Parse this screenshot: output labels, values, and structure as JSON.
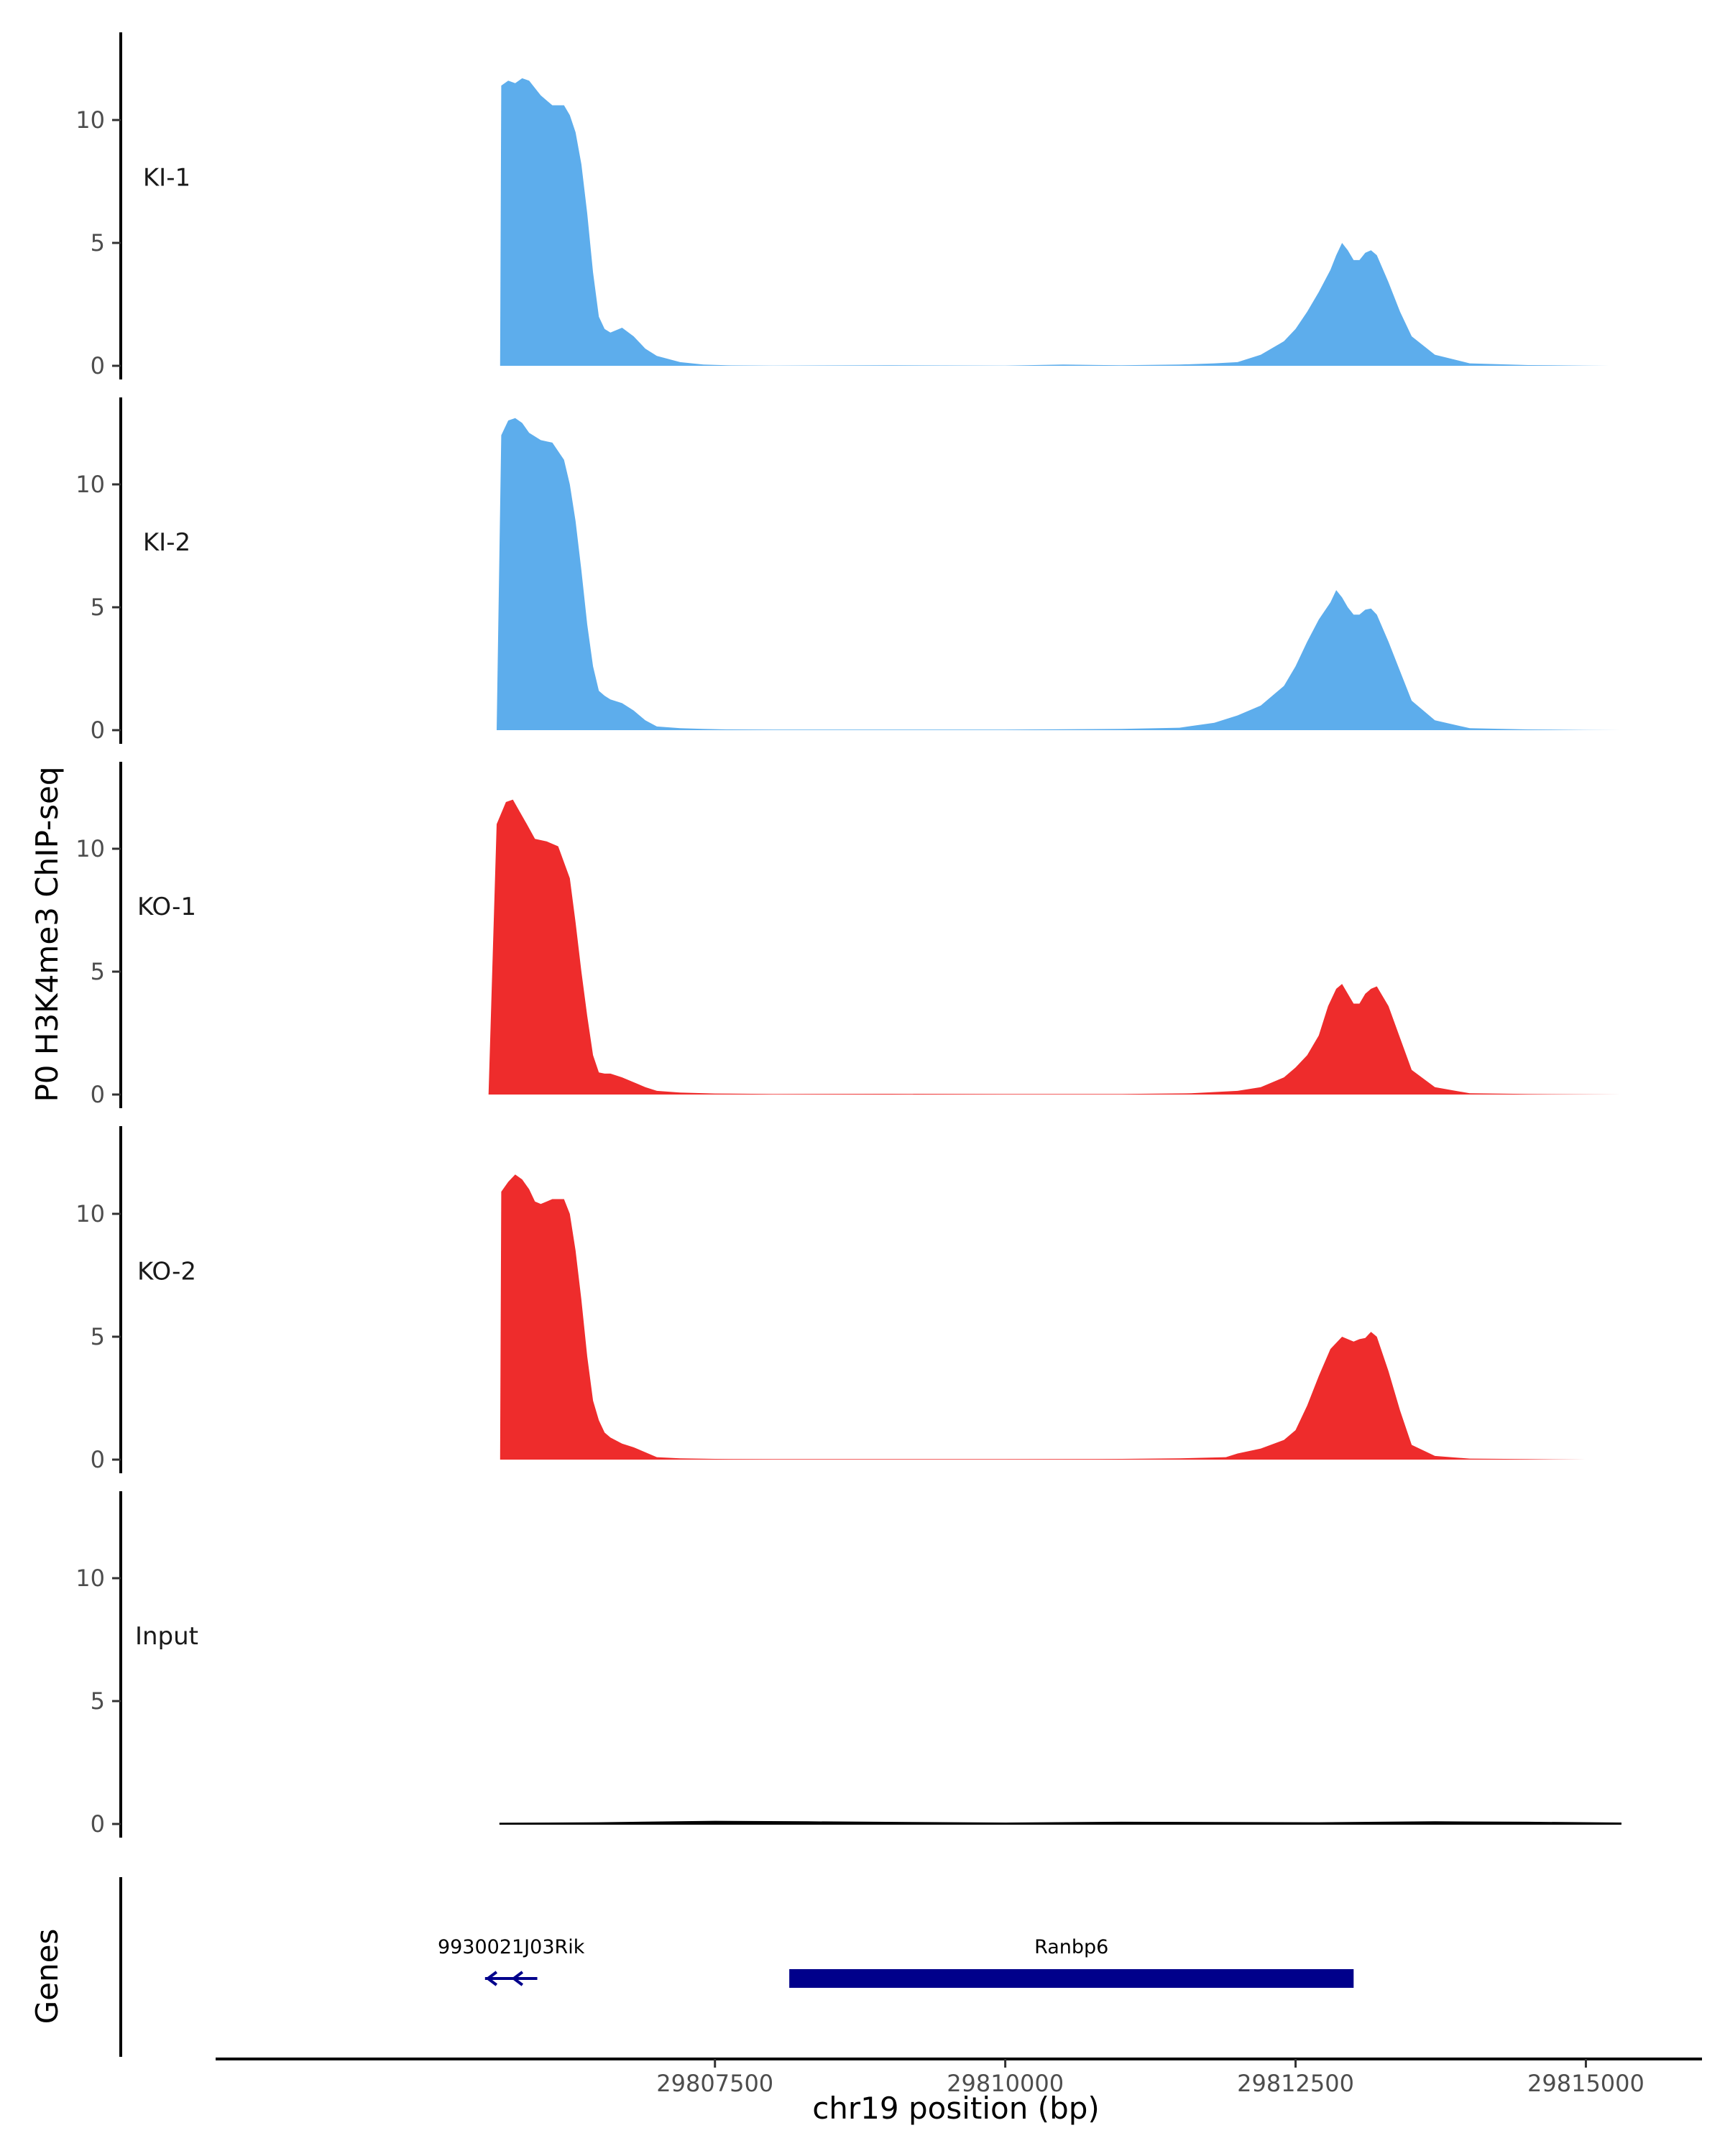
{
  "chart_data": {
    "type": "area",
    "ylabel": "P0 H3K4me3 ChIP-seq",
    "xlabel": "chr19 position (bp)",
    "genes_label": "Genes",
    "xlim": [
      29803200,
      29816000
    ],
    "x_ticks": [
      29807500,
      29810000,
      29812500,
      29815000
    ],
    "x_tick_labels": [
      "29807500",
      "29810000",
      "29812500",
      "29815000"
    ],
    "y_ticks": [
      0,
      5,
      10
    ],
    "y_tick_labels": [
      "0",
      "5",
      "10"
    ],
    "ylim": [
      0,
      13.5
    ],
    "colors": {
      "KI": "#5DADEC",
      "KO": "#EE2C2C",
      "Input": "#000000",
      "gene": "#00008B"
    },
    "tracks": [
      {
        "name": "KI-1",
        "color": "#5DADEC",
        "x": [
          29805650,
          29805660,
          29805720,
          29805780,
          29805840,
          29805900,
          29806000,
          29806100,
          29806200,
          29806250,
          29806300,
          29806350,
          29806400,
          29806450,
          29806500,
          29806550,
          29806600,
          29806700,
          29806800,
          29806900,
          29807000,
          29807200,
          29807400,
          29807600,
          29808000,
          29809000,
          29810000,
          29810500,
          29811000,
          29811500,
          29811800,
          29812000,
          29812200,
          29812400,
          29812500,
          29812600,
          29812700,
          29812800,
          29812850,
          29812900,
          29812950,
          29813000,
          29813050,
          29813100,
          29813150,
          29813200,
          29813300,
          29813400,
          29813500,
          29813700,
          29814000,
          29814500,
          29815000,
          29815200
        ],
        "y": [
          0,
          11.4,
          11.6,
          11.5,
          11.7,
          11.6,
          11.0,
          10.6,
          10.6,
          10.2,
          9.5,
          8.2,
          6.2,
          3.8,
          2.0,
          1.5,
          1.35,
          1.55,
          1.2,
          0.7,
          0.4,
          0.15,
          0.05,
          0.02,
          0.01,
          0.02,
          0.01,
          0.05,
          0.02,
          0.05,
          0.1,
          0.15,
          0.45,
          1.0,
          1.5,
          2.2,
          3.0,
          3.9,
          4.5,
          5.0,
          4.7,
          4.3,
          4.3,
          4.6,
          4.7,
          4.5,
          3.4,
          2.2,
          1.2,
          0.45,
          0.1,
          0.03,
          0.01,
          0
        ],
        "label_position": "left"
      },
      {
        "name": "KI-2",
        "color": "#5DADEC",
        "x": [
          29805620,
          29805660,
          29805720,
          29805780,
          29805840,
          29805900,
          29806000,
          29806100,
          29806200,
          29806250,
          29806300,
          29806350,
          29806400,
          29806450,
          29806500,
          29806550,
          29806600,
          29806700,
          29806800,
          29806900,
          29807000,
          29807200,
          29807400,
          29807600,
          29808000,
          29809000,
          29810000,
          29811000,
          29811500,
          29811800,
          29812000,
          29812200,
          29812400,
          29812500,
          29812600,
          29812700,
          29812800,
          29812850,
          29812900,
          29812950,
          29813000,
          29813050,
          29813100,
          29813150,
          29813200,
          29813300,
          29813400,
          29813500,
          29813700,
          29814000,
          29814500,
          29815000,
          29815300
        ],
        "y": [
          0,
          12.0,
          12.6,
          12.7,
          12.5,
          12.1,
          11.8,
          11.7,
          11.0,
          10.0,
          8.5,
          6.5,
          4.3,
          2.6,
          1.6,
          1.4,
          1.25,
          1.1,
          0.8,
          0.4,
          0.15,
          0.08,
          0.05,
          0.03,
          0.02,
          0.02,
          0.02,
          0.05,
          0.1,
          0.3,
          0.6,
          1.0,
          1.8,
          2.6,
          3.6,
          4.5,
          5.2,
          5.7,
          5.4,
          5.0,
          4.7,
          4.7,
          4.9,
          4.95,
          4.7,
          3.6,
          2.4,
          1.2,
          0.4,
          0.08,
          0.03,
          0.01,
          0
        ],
        "label_position": "left"
      },
      {
        "name": "KO-1",
        "color": "#EE2C2C",
        "x": [
          29805550,
          29805620,
          29805700,
          29805760,
          29805820,
          29805880,
          29805950,
          29806050,
          29806150,
          29806250,
          29806300,
          29806350,
          29806400,
          29806450,
          29806500,
          29806550,
          29806600,
          29806700,
          29806800,
          29806900,
          29807000,
          29807200,
          29807500,
          29808000,
          29809000,
          29810000,
          29811000,
          29811600,
          29812000,
          29812200,
          29812400,
          29812500,
          29812600,
          29812700,
          29812780,
          29812850,
          29812900,
          29812950,
          29813000,
          29813050,
          29813100,
          29813150,
          29813200,
          29813300,
          29813400,
          29813500,
          29813700,
          29814000,
          29814500,
          29815000,
          29815300
        ],
        "y": [
          0,
          11.0,
          11.9,
          12.0,
          11.5,
          11.0,
          10.4,
          10.3,
          10.1,
          8.8,
          7.0,
          5.0,
          3.2,
          1.6,
          0.9,
          0.85,
          0.85,
          0.7,
          0.5,
          0.3,
          0.15,
          0.08,
          0.04,
          0.02,
          0.03,
          0.02,
          0.02,
          0.05,
          0.15,
          0.3,
          0.7,
          1.1,
          1.6,
          2.4,
          3.6,
          4.3,
          4.5,
          4.1,
          3.7,
          3.7,
          4.1,
          4.3,
          4.4,
          3.6,
          2.3,
          1.0,
          0.3,
          0.05,
          0.02,
          0.01,
          0
        ],
        "label_position": "left"
      },
      {
        "name": "KO-2",
        "color": "#EE2C2C",
        "x": [
          29805650,
          29805660,
          29805720,
          29805780,
          29805840,
          29805900,
          29805950,
          29806000,
          29806100,
          29806200,
          29806250,
          29806300,
          29806350,
          29806400,
          29806450,
          29806500,
          29806550,
          29806600,
          29806700,
          29806800,
          29806900,
          29807000,
          29807200,
          29807500,
          29808000,
          29809000,
          29810000,
          29811000,
          29811500,
          29811900,
          29812000,
          29812200,
          29812400,
          29812500,
          29812600,
          29812700,
          29812800,
          29812900,
          29813000,
          29813050,
          29813100,
          29813150,
          29813200,
          29813300,
          29813400,
          29813500,
          29813700,
          29814000,
          29814500,
          29815000
        ],
        "y": [
          0,
          10.9,
          11.3,
          11.6,
          11.4,
          11.0,
          10.5,
          10.4,
          10.6,
          10.6,
          10.0,
          8.5,
          6.5,
          4.2,
          2.4,
          1.6,
          1.1,
          0.9,
          0.65,
          0.5,
          0.3,
          0.1,
          0.05,
          0.03,
          0.02,
          0.02,
          0.02,
          0.03,
          0.05,
          0.1,
          0.25,
          0.45,
          0.8,
          1.2,
          2.2,
          3.4,
          4.5,
          5.0,
          4.8,
          4.9,
          4.95,
          5.2,
          5.0,
          3.6,
          2.0,
          0.6,
          0.15,
          0.04,
          0.02,
          0
        ],
        "label_position": "left"
      },
      {
        "name": "Input",
        "color": "#000000",
        "x": [
          29805650,
          29806500,
          29807500,
          29808300,
          29809200,
          29810000,
          29811000,
          29811800,
          29812700,
          29813700,
          29814500,
          29815300
        ],
        "y": [
          0.02,
          0.04,
          0.1,
          0.08,
          0.05,
          0.03,
          0.06,
          0.05,
          0.04,
          0.08,
          0.06,
          0.03
        ],
        "label_position": "left"
      }
    ],
    "genes": [
      {
        "name": "9930021J03Rik",
        "start": 29805520,
        "end": 29805970,
        "strand": "-",
        "thickness": "thin"
      },
      {
        "name": "Ranbp6",
        "start": 29808140,
        "end": 29813000,
        "strand": "-",
        "thickness": "thick"
      }
    ]
  }
}
